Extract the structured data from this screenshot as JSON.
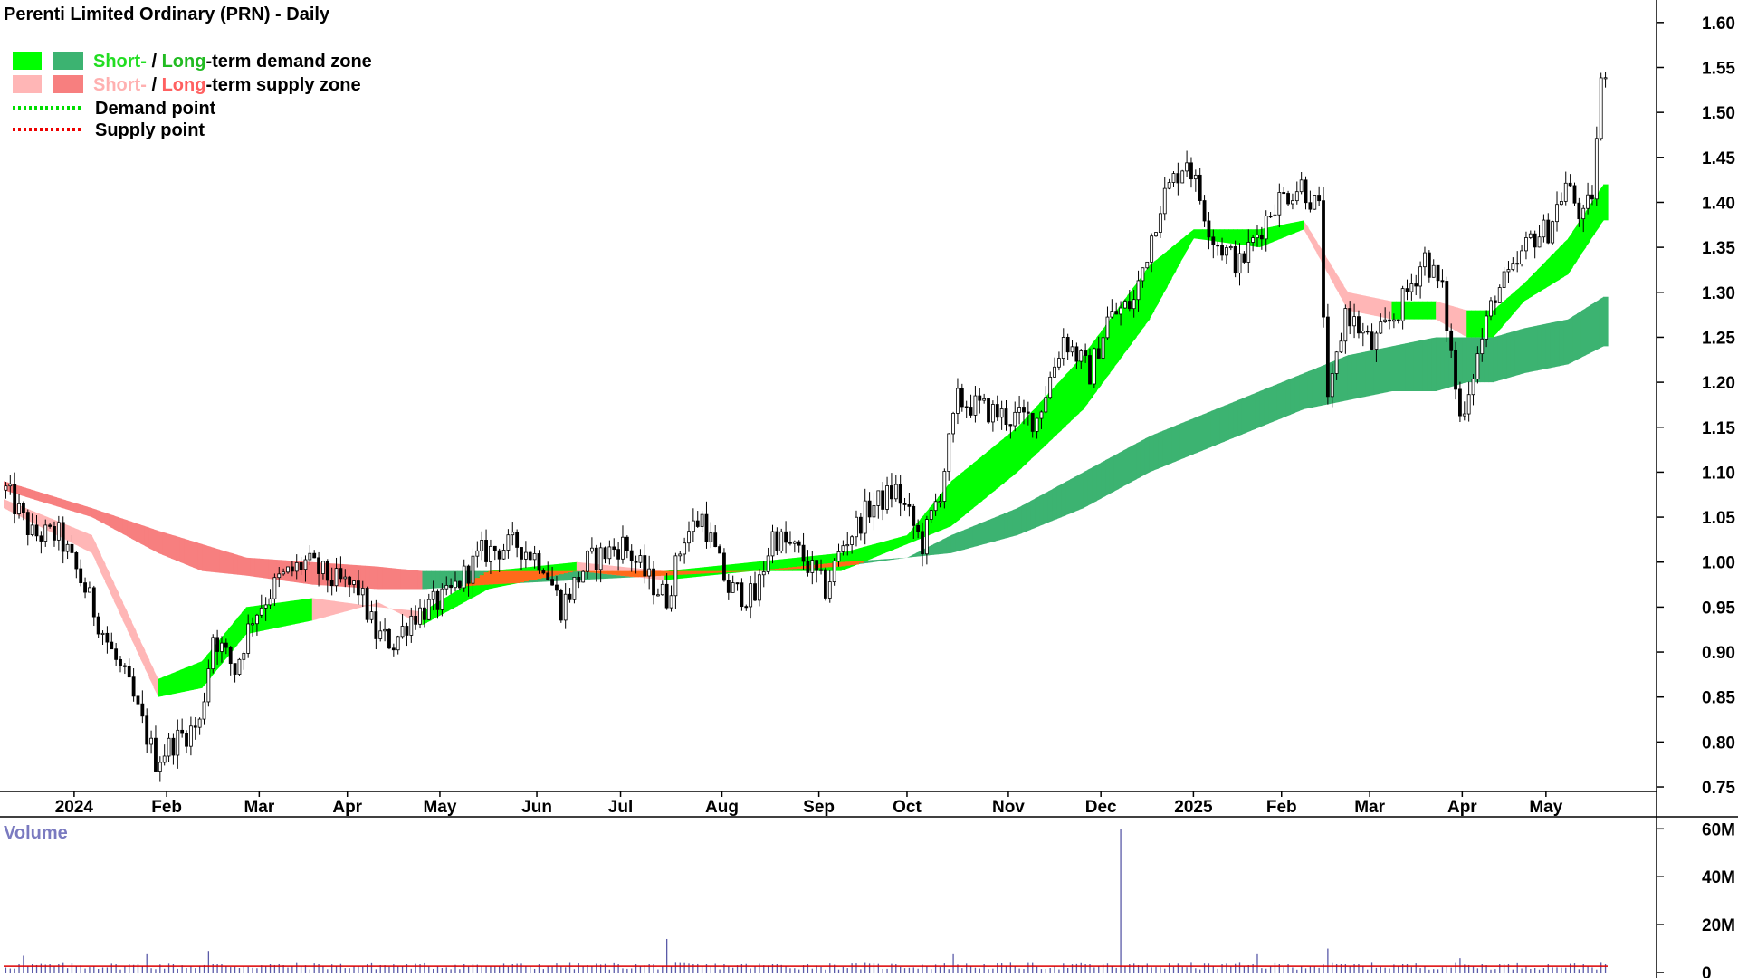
{
  "title": "Perenti Limited Ordinary (PRN) - Daily",
  "legend": {
    "short_word": "Short-",
    "slash": " / ",
    "long_word": "Long",
    "demand_suffix": "-term demand zone",
    "supply_suffix": "-term supply zone",
    "demand_point": "Demand point",
    "supply_point": "Supply point"
  },
  "colors": {
    "short_demand": "#00ff00",
    "long_demand": "#3cb371",
    "short_supply": "#ffb6b6",
    "long_supply": "#f77f7f",
    "transition": "#ff6a1a",
    "demand_point": "#00dd00",
    "supply_point": "#ee0000",
    "short_label": "#22dd22",
    "long_label": "#22bb22",
    "short_supply_label": "#ffb0b0",
    "long_supply_label": "#ff6060",
    "volume_bar": "#5a5aa8",
    "volume_avg": "#dd0000",
    "volume_label": "#7a7ac0"
  },
  "chart_data": {
    "type": "candlestick",
    "title": "Perenti Limited Ordinary (PRN) - Daily",
    "y_ticks": [
      "1.60",
      "1.55",
      "1.50",
      "1.45",
      "1.40",
      "1.35",
      "1.30",
      "1.25",
      "1.20",
      "1.15",
      "1.10",
      "1.05",
      "1.00",
      "0.95",
      "0.90",
      "0.85",
      "0.80",
      "0.75"
    ],
    "ylim": [
      0.745,
      1.625
    ],
    "x_ticks": [
      {
        "label": "2024",
        "day": 16
      },
      {
        "label": "Feb",
        "day": 37
      },
      {
        "label": "Mar",
        "day": 58
      },
      {
        "label": "Apr",
        "day": 78
      },
      {
        "label": "May",
        "day": 99
      },
      {
        "label": "Jun",
        "day": 121
      },
      {
        "label": "Jul",
        "day": 140
      },
      {
        "label": "Aug",
        "day": 163
      },
      {
        "label": "Sep",
        "day": 185
      },
      {
        "label": "Oct",
        "day": 205
      },
      {
        "label": "Nov",
        "day": 228
      },
      {
        "label": "Dec",
        "day": 249
      },
      {
        "label": "2025",
        "day": 270
      },
      {
        "label": "Feb",
        "day": 290
      },
      {
        "label": "Mar",
        "day": 310
      },
      {
        "label": "Apr",
        "day": 331
      },
      {
        "label": "May",
        "day": 350
      }
    ],
    "price_path": [
      [
        0,
        1.08
      ],
      [
        6,
        1.03
      ],
      [
        12,
        1.03
      ],
      [
        18,
        0.97
      ],
      [
        24,
        0.9
      ],
      [
        28,
        0.86
      ],
      [
        34,
        0.78
      ],
      [
        38,
        0.8
      ],
      [
        44,
        0.82
      ],
      [
        47,
        0.92
      ],
      [
        52,
        0.88
      ],
      [
        56,
        0.94
      ],
      [
        62,
        0.98
      ],
      [
        68,
        1.0
      ],
      [
        74,
        0.98
      ],
      [
        80,
        0.97
      ],
      [
        84,
        0.92
      ],
      [
        88,
        0.91
      ],
      [
        92,
        0.94
      ],
      [
        100,
        0.96
      ],
      [
        108,
        1.01
      ],
      [
        116,
        1.02
      ],
      [
        122,
        1.0
      ],
      [
        126,
        0.95
      ],
      [
        132,
        1.0
      ],
      [
        140,
        1.02
      ],
      [
        146,
        0.98
      ],
      [
        150,
        0.96
      ],
      [
        154,
        1.03
      ],
      [
        158,
        1.05
      ],
      [
        164,
        0.97
      ],
      [
        170,
        0.96
      ],
      [
        174,
        1.03
      ],
      [
        180,
        1.01
      ],
      [
        186,
        0.97
      ],
      [
        190,
        1.02
      ],
      [
        196,
        1.06
      ],
      [
        202,
        1.08
      ],
      [
        208,
        1.02
      ],
      [
        212,
        1.08
      ],
      [
        216,
        1.18
      ],
      [
        222,
        1.17
      ],
      [
        228,
        1.16
      ],
      [
        234,
        1.16
      ],
      [
        240,
        1.25
      ],
      [
        246,
        1.21
      ],
      [
        250,
        1.27
      ],
      [
        256,
        1.29
      ],
      [
        262,
        1.4
      ],
      [
        268,
        1.45
      ],
      [
        274,
        1.36
      ],
      [
        280,
        1.33
      ],
      [
        288,
        1.4
      ],
      [
        294,
        1.42
      ],
      [
        298,
        1.39
      ],
      [
        300,
        1.17
      ],
      [
        304,
        1.28
      ],
      [
        310,
        1.24
      ],
      [
        316,
        1.28
      ],
      [
        322,
        1.34
      ],
      [
        326,
        1.3
      ],
      [
        330,
        1.16
      ],
      [
        334,
        1.23
      ],
      [
        338,
        1.3
      ],
      [
        342,
        1.32
      ],
      [
        346,
        1.36
      ],
      [
        350,
        1.37
      ],
      [
        354,
        1.42
      ],
      [
        358,
        1.38
      ],
      [
        360,
        1.41
      ],
      [
        362,
        1.53
      ],
      [
        363,
        1.55
      ]
    ],
    "band_points": [
      0,
      20,
      35,
      45,
      55,
      70,
      85,
      95,
      110,
      130,
      150,
      170,
      190,
      205,
      215,
      230,
      245,
      260,
      270,
      285,
      295,
      305,
      315,
      325,
      332,
      338,
      345,
      355,
      363
    ],
    "short_upper": [
      1.07,
      1.03,
      0.87,
      0.89,
      0.95,
      0.96,
      0.95,
      0.945,
      0.99,
      1.0,
      0.99,
      1.0,
      1.01,
      1.03,
      1.09,
      1.15,
      1.23,
      1.33,
      1.37,
      1.37,
      1.38,
      1.3,
      1.29,
      1.29,
      1.28,
      1.28,
      1.31,
      1.36,
      1.42
    ],
    "short_lower": [
      1.06,
      1.01,
      0.85,
      0.86,
      0.92,
      0.935,
      0.955,
      0.93,
      0.97,
      0.99,
      0.98,
      0.99,
      0.99,
      1.02,
      1.04,
      1.1,
      1.17,
      1.27,
      1.36,
      1.35,
      1.37,
      1.28,
      1.27,
      1.27,
      1.25,
      1.25,
      1.29,
      1.32,
      1.38
    ],
    "long_upper": [
      1.09,
      1.06,
      1.035,
      1.02,
      1.005,
      1.0,
      0.995,
      0.99,
      0.99,
      0.99,
      0.99,
      0.99,
      1.0,
      1.005,
      1.03,
      1.06,
      1.1,
      1.14,
      1.16,
      1.19,
      1.21,
      1.23,
      1.24,
      1.25,
      1.25,
      1.25,
      1.26,
      1.27,
      1.295
    ],
    "long_lower": [
      1.08,
      1.05,
      1.01,
      0.99,
      0.985,
      0.975,
      0.97,
      0.97,
      0.975,
      0.98,
      0.985,
      0.99,
      0.995,
      1.005,
      1.01,
      1.03,
      1.06,
      1.1,
      1.12,
      1.15,
      1.17,
      1.18,
      1.19,
      1.19,
      1.2,
      1.2,
      1.21,
      1.22,
      1.24
    ],
    "volume": {
      "label": "Volume",
      "y_ticks": [
        "60M",
        "40M",
        "20M",
        "0"
      ],
      "ylim": [
        0,
        62
      ],
      "avg": 2.6,
      "spikes": [
        [
          4,
          7
        ],
        [
          32,
          8
        ],
        [
          46,
          9
        ],
        [
          150,
          14
        ],
        [
          215,
          8
        ],
        [
          253,
          60
        ],
        [
          259,
          4
        ],
        [
          284,
          8
        ],
        [
          300,
          10
        ],
        [
          330,
          6
        ]
      ]
    }
  }
}
